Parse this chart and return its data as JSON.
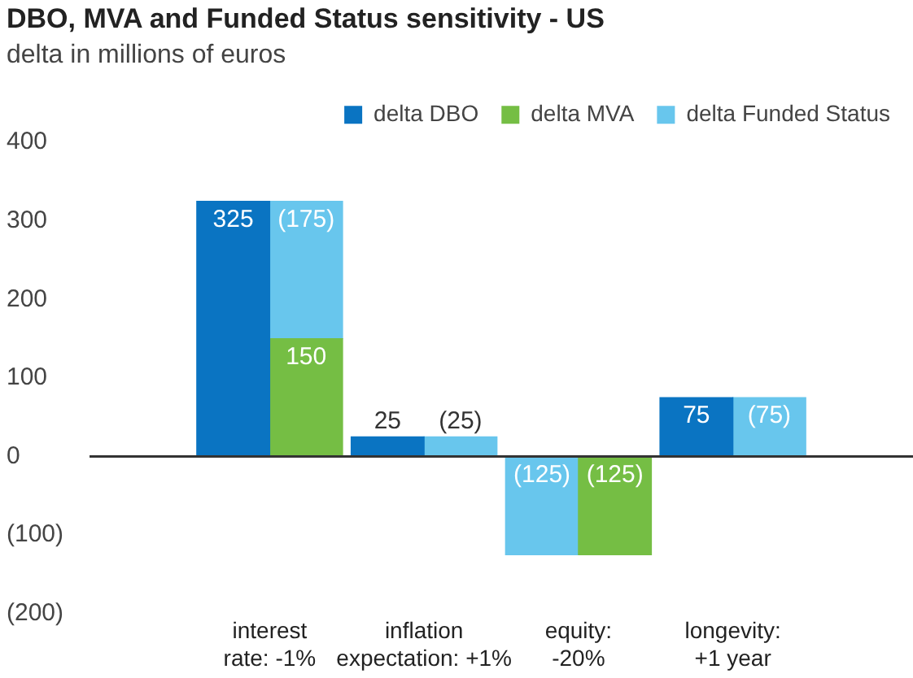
{
  "chart_data": {
    "type": "bar",
    "title": "DBO, MVA and Funded Status sensitivity - US",
    "subtitle": "delta in millions of euros",
    "categories": [
      "interest\nrate: -1%",
      "inflation\nexpectation: +1%",
      "equity:\n-20%",
      "longevity:\n+1 year"
    ],
    "series": [
      {
        "name": "delta DBO",
        "color": "#0a74c2",
        "values": [
          325,
          25,
          null,
          75
        ],
        "value_labels": [
          "325",
          "25",
          null,
          "75"
        ]
      },
      {
        "name": "delta MVA",
        "color": "#75be44",
        "values": [
          150,
          null,
          -125,
          null
        ],
        "value_labels": [
          "150",
          null,
          "(125)",
          null
        ]
      },
      {
        "name": "delta Funded Status",
        "color": "#68c6ed",
        "values": [
          -175,
          -25,
          -125,
          -75
        ],
        "base": [
          325,
          25,
          0,
          75
        ],
        "value_labels": [
          "(175)",
          "(25)",
          "(125)",
          "(75)"
        ]
      }
    ],
    "ylim": [
      -200,
      400
    ],
    "yticks": [
      {
        "value": 400,
        "label": "400"
      },
      {
        "value": 300,
        "label": "300"
      },
      {
        "value": 200,
        "label": "200"
      },
      {
        "value": 100,
        "label": "100"
      },
      {
        "value": 0,
        "label": "0"
      },
      {
        "value": -100,
        "label": "(100)"
      },
      {
        "value": -200,
        "label": "(200)"
      }
    ],
    "ref_lines": [
      {
        "axis": "y",
        "value": 0,
        "color": "#333333"
      }
    ],
    "legend": "top right"
  }
}
